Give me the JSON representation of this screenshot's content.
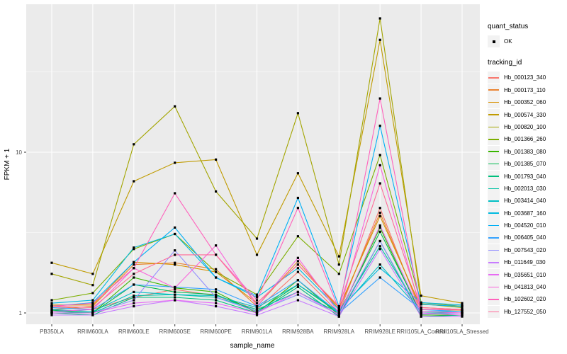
{
  "legend": {
    "quant_status_title": "quant_status",
    "quant_status_items": [
      {
        "label": "OK",
        "marker": "black-square-point"
      }
    ],
    "tracking_title": "tracking_id"
  },
  "chart_data": {
    "type": "line",
    "title": "",
    "xlabel": "sample_name",
    "ylabel": "FPKM + 1",
    "y_scale": "log10",
    "panel_bg": "#EBEBEB",
    "grid_color": "#FFFFFF",
    "point_color": "#000000",
    "axis_text_color": "#4D4D4D",
    "y_ticks": [
      {
        "value": 1,
        "label": "1"
      },
      {
        "value": 10,
        "label": "10"
      }
    ],
    "y_minor_gridlines": [
      3.1623,
      31.623
    ],
    "ylim": [
      0.85,
      83
    ],
    "categories": [
      "PB350LA",
      "RRIM600LA",
      "RRIM600LE",
      "RRIM600SE",
      "RRIM600PE",
      "RRIM901LA",
      "RRIM928BA",
      "RRIM928LA",
      "RRIM928LE",
      "RRII105LA_Control",
      "RRII105LA_Stressed"
    ],
    "series": [
      {
        "name": "Hb_000123_340",
        "color": "#F8766D",
        "values": [
          1.1,
          1.05,
          1.25,
          1.4,
          1.28,
          1.05,
          1.8,
          1.0,
          4.5,
          1.0,
          1.0
        ]
      },
      {
        "name": "Hb_000173_110",
        "color": "#EA8331",
        "values": [
          1.05,
          1.1,
          2.0,
          2.05,
          1.87,
          1.1,
          2.1,
          1.05,
          4.2,
          1.05,
          1.04
        ]
      },
      {
        "name": "Hb_000352_060",
        "color": "#D89000",
        "values": [
          1.12,
          1.12,
          2.07,
          2.0,
          1.8,
          1.15,
          2.0,
          1.08,
          4.0,
          1.08,
          1.05
        ]
      },
      {
        "name": "Hb_000574_330",
        "color": "#C09B00",
        "values": [
          2.05,
          1.75,
          6.6,
          8.6,
          9.0,
          2.3,
          7.4,
          2.25,
          50.0,
          1.28,
          1.15
        ]
      },
      {
        "name": "Hb_000820_100",
        "color": "#A3A500",
        "values": [
          1.75,
          1.49,
          11.2,
          19.3,
          5.7,
          2.9,
          17.5,
          2.0,
          68.0,
          1.16,
          1.1
        ]
      },
      {
        "name": "Hb_001366_260",
        "color": "#7CAE00",
        "values": [
          1.2,
          1.33,
          2.5,
          3.1,
          1.8,
          1.3,
          3.0,
          1.75,
          9.6,
          1.14,
          1.08
        ]
      },
      {
        "name": "Hb_001383_080",
        "color": "#39B600",
        "values": [
          1.0,
          1.0,
          1.66,
          1.43,
          1.35,
          1.0,
          1.6,
          0.97,
          3.4,
          0.97,
          0.97
        ]
      },
      {
        "name": "Hb_001385_070",
        "color": "#00BB4E",
        "values": [
          1.04,
          1.0,
          1.5,
          1.35,
          1.3,
          1.02,
          1.5,
          1.0,
          3.2,
          1.0,
          1.0
        ]
      },
      {
        "name": "Hb_001793_040",
        "color": "#00BF7D",
        "values": [
          1.0,
          0.97,
          1.25,
          1.25,
          1.2,
          1.0,
          1.45,
          0.95,
          2.8,
          0.95,
          0.97
        ]
      },
      {
        "name": "Hb_002013_030",
        "color": "#00C1A3",
        "values": [
          1.02,
          1.0,
          1.28,
          1.3,
          1.25,
          1.05,
          1.35,
          1.0,
          2.6,
          1.0,
          1.0
        ]
      },
      {
        "name": "Hb_003414_040",
        "color": "#00BFC4",
        "values": [
          1.05,
          1.02,
          1.35,
          1.3,
          1.28,
          1.08,
          1.5,
          1.02,
          2.0,
          1.02,
          1.02
        ]
      },
      {
        "name": "Hb_003687_160",
        "color": "#00BAE0",
        "values": [
          1.15,
          1.2,
          2.55,
          3.1,
          1.66,
          1.25,
          1.9,
          1.05,
          1.9,
          1.16,
          1.12
        ]
      },
      {
        "name": "Hb_004520_010",
        "color": "#00B0F6",
        "values": [
          1.1,
          1.16,
          2.07,
          3.4,
          1.66,
          1.28,
          5.2,
          1.1,
          14.6,
          1.13,
          1.1
        ]
      },
      {
        "name": "Hb_006405_040",
        "color": "#35A2FF",
        "values": [
          1.08,
          1.05,
          1.5,
          1.45,
          1.4,
          1.1,
          1.6,
          1.0,
          1.66,
          1.05,
          1.02
        ]
      },
      {
        "name": "Hb_007543_020",
        "color": "#9590FF",
        "values": [
          1.0,
          1.0,
          1.2,
          2.45,
          1.25,
          1.02,
          1.3,
          0.98,
          2.8,
          0.98,
          1.0
        ]
      },
      {
        "name": "Hb_011649_030",
        "color": "#C77CFF",
        "values": [
          0.97,
          0.97,
          1.1,
          1.2,
          1.1,
          0.97,
          1.2,
          0.95,
          2.5,
          0.95,
          0.95
        ]
      },
      {
        "name": "Hb_035651_010",
        "color": "#E76BF3",
        "values": [
          1.0,
          1.0,
          1.15,
          1.2,
          1.15,
          1.0,
          1.35,
          0.97,
          3.5,
          1.0,
          0.97
        ]
      },
      {
        "name": "Hb_041813_040",
        "color": "#FA62DB",
        "values": [
          1.02,
          1.05,
          1.9,
          1.43,
          2.63,
          1.1,
          2.2,
          1.0,
          8.3,
          1.02,
          1.0
        ]
      },
      {
        "name": "Hb_102602_020",
        "color": "#FF62BC",
        "values": [
          1.1,
          1.15,
          1.9,
          5.55,
          2.3,
          1.2,
          4.5,
          1.05,
          21.6,
          1.05,
          1.05
        ]
      },
      {
        "name": "Hb_127552_050",
        "color": "#FF6A98",
        "values": [
          1.1,
          1.08,
          1.75,
          2.3,
          2.3,
          1.15,
          2.0,
          1.1,
          6.4,
          1.08,
          1.05
        ]
      }
    ]
  }
}
